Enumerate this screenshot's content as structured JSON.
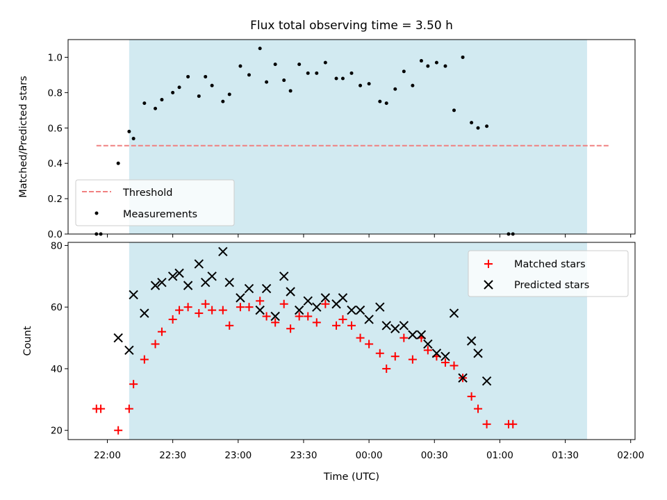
{
  "chart_data": [
    {
      "type": "scatter",
      "title": "Flux total observing time = 3.50 h",
      "ylabel": "Matched/Predicted stars",
      "ylim": [
        0,
        1.1
      ],
      "yticks": [
        "0.0",
        "0.2",
        "0.4",
        "0.6",
        "0.8",
        "1.0"
      ],
      "xlim": [
        "21:42",
        "02:02"
      ],
      "shaded_span": [
        "22:10",
        "01:40"
      ],
      "grid": false,
      "legend_position": "lower-left",
      "threshold": {
        "name": "Threshold",
        "value": 0.5,
        "x_range": [
          "21:55",
          "01:50"
        ],
        "color": "#f08080"
      },
      "series": [
        {
          "name": "Measurements",
          "color": "#000000",
          "points": [
            [
              "21:55",
              0.0
            ],
            [
              "21:57",
              0.0
            ],
            [
              "22:05",
              0.4
            ],
            [
              "22:10",
              0.58
            ],
            [
              "22:12",
              0.54
            ],
            [
              "22:17",
              0.74
            ],
            [
              "22:22",
              0.71
            ],
            [
              "22:25",
              0.76
            ],
            [
              "22:30",
              0.8
            ],
            [
              "22:33",
              0.83
            ],
            [
              "22:37",
              0.89
            ],
            [
              "22:42",
              0.78
            ],
            [
              "22:45",
              0.89
            ],
            [
              "22:48",
              0.84
            ],
            [
              "22:53",
              0.75
            ],
            [
              "22:56",
              0.79
            ],
            [
              "23:01",
              0.95
            ],
            [
              "23:05",
              0.9
            ],
            [
              "23:10",
              1.05
            ],
            [
              "23:13",
              0.86
            ],
            [
              "23:17",
              0.96
            ],
            [
              "23:21",
              0.87
            ],
            [
              "23:24",
              0.81
            ],
            [
              "23:28",
              0.96
            ],
            [
              "23:32",
              0.91
            ],
            [
              "23:36",
              0.91
            ],
            [
              "23:40",
              0.97
            ],
            [
              "23:45",
              0.88
            ],
            [
              "23:48",
              0.88
            ],
            [
              "23:52",
              0.91
            ],
            [
              "23:56",
              0.84
            ],
            [
              "00:00",
              0.85
            ],
            [
              "00:05",
              0.75
            ],
            [
              "00:08",
              0.74
            ],
            [
              "00:12",
              0.82
            ],
            [
              "00:16",
              0.92
            ],
            [
              "00:20",
              0.84
            ],
            [
              "00:24",
              0.98
            ],
            [
              "00:27",
              0.95
            ],
            [
              "00:31",
              0.97
            ],
            [
              "00:35",
              0.95
            ],
            [
              "00:39",
              0.7
            ],
            [
              "00:43",
              1.0
            ],
            [
              "00:47",
              0.63
            ],
            [
              "00:50",
              0.6
            ],
            [
              "00:54",
              0.61
            ],
            [
              "01:04",
              0.0
            ],
            [
              "01:06",
              0.0
            ]
          ]
        }
      ]
    },
    {
      "type": "scatter",
      "xlabel": "Time (UTC)",
      "ylabel": "Count",
      "ylim": [
        17,
        81
      ],
      "yticks": [
        "20",
        "40",
        "60",
        "80"
      ],
      "xlim": [
        "21:42",
        "02:02"
      ],
      "xticks": [
        "22:00",
        "22:30",
        "23:00",
        "23:30",
        "00:00",
        "00:30",
        "01:00",
        "01:30",
        "02:00"
      ],
      "shaded_span": [
        "22:10",
        "01:40"
      ],
      "grid": false,
      "legend_position": "upper-right",
      "series": [
        {
          "name": "Matched stars",
          "marker": "plus",
          "color": "#ff0000",
          "points": [
            [
              "21:55",
              27
            ],
            [
              "21:57",
              27
            ],
            [
              "22:05",
              20
            ],
            [
              "22:10",
              27
            ],
            [
              "22:12",
              35
            ],
            [
              "22:17",
              43
            ],
            [
              "22:22",
              48
            ],
            [
              "22:25",
              52
            ],
            [
              "22:30",
              56
            ],
            [
              "22:33",
              59
            ],
            [
              "22:37",
              60
            ],
            [
              "22:42",
              58
            ],
            [
              "22:45",
              61
            ],
            [
              "22:48",
              59
            ],
            [
              "22:53",
              59
            ],
            [
              "22:56",
              54
            ],
            [
              "23:01",
              60
            ],
            [
              "23:05",
              60
            ],
            [
              "23:10",
              62
            ],
            [
              "23:13",
              57
            ],
            [
              "23:17",
              55
            ],
            [
              "23:21",
              61
            ],
            [
              "23:24",
              53
            ],
            [
              "23:28",
              57
            ],
            [
              "23:32",
              57
            ],
            [
              "23:36",
              55
            ],
            [
              "23:40",
              61
            ],
            [
              "23:45",
              54
            ],
            [
              "23:48",
              56
            ],
            [
              "23:52",
              54
            ],
            [
              "23:56",
              50
            ],
            [
              "00:00",
              48
            ],
            [
              "00:05",
              45
            ],
            [
              "00:08",
              40
            ],
            [
              "00:12",
              44
            ],
            [
              "00:16",
              50
            ],
            [
              "00:20",
              43
            ],
            [
              "00:24",
              50
            ],
            [
              "00:27",
              46
            ],
            [
              "00:31",
              44
            ],
            [
              "00:35",
              42
            ],
            [
              "00:39",
              41
            ],
            [
              "00:43",
              37
            ],
            [
              "00:47",
              31
            ],
            [
              "00:50",
              27
            ],
            [
              "00:54",
              22
            ],
            [
              "01:04",
              22
            ],
            [
              "01:06",
              22
            ]
          ]
        },
        {
          "name": "Predicted stars",
          "marker": "x",
          "color": "#000000",
          "points": [
            [
              "22:05",
              50
            ],
            [
              "22:10",
              46
            ],
            [
              "22:12",
              64
            ],
            [
              "22:17",
              58
            ],
            [
              "22:22",
              67
            ],
            [
              "22:25",
              68
            ],
            [
              "22:30",
              70
            ],
            [
              "22:33",
              71
            ],
            [
              "22:37",
              67
            ],
            [
              "22:42",
              74
            ],
            [
              "22:45",
              68
            ],
            [
              "22:48",
              70
            ],
            [
              "22:53",
              78
            ],
            [
              "22:56",
              68
            ],
            [
              "23:01",
              63
            ],
            [
              "23:05",
              66
            ],
            [
              "23:10",
              59
            ],
            [
              "23:13",
              66
            ],
            [
              "23:17",
              57
            ],
            [
              "23:21",
              70
            ],
            [
              "23:24",
              65
            ],
            [
              "23:28",
              59
            ],
            [
              "23:32",
              62
            ],
            [
              "23:36",
              60
            ],
            [
              "23:40",
              63
            ],
            [
              "23:45",
              61
            ],
            [
              "23:48",
              63
            ],
            [
              "23:52",
              59
            ],
            [
              "23:56",
              59
            ],
            [
              "00:00",
              56
            ],
            [
              "00:05",
              60
            ],
            [
              "00:08",
              54
            ],
            [
              "00:12",
              53
            ],
            [
              "00:16",
              54
            ],
            [
              "00:20",
              51
            ],
            [
              "00:24",
              51
            ],
            [
              "00:27",
              48
            ],
            [
              "00:31",
              45
            ],
            [
              "00:35",
              44
            ],
            [
              "00:39",
              58
            ],
            [
              "00:43",
              37
            ],
            [
              "00:47",
              49
            ],
            [
              "00:50",
              45
            ],
            [
              "00:54",
              36
            ]
          ]
        }
      ]
    }
  ]
}
